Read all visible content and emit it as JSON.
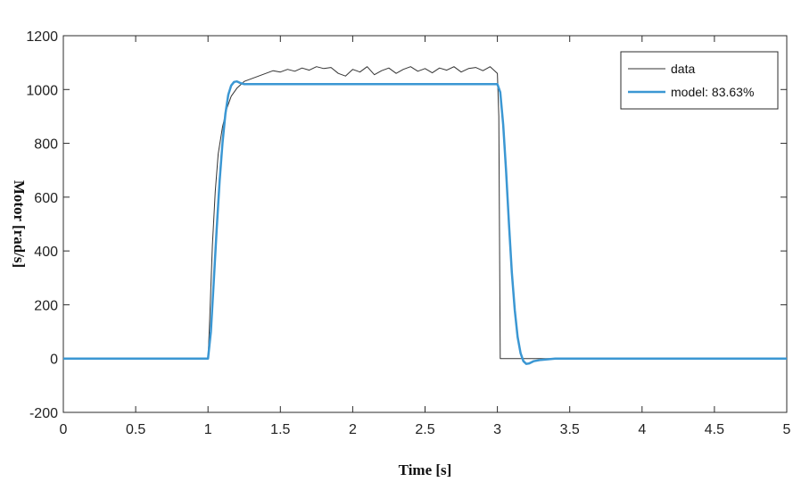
{
  "chart_data": {
    "type": "line",
    "title": "",
    "xlabel": "Time [s]",
    "ylabel": "Motor [rad/s]",
    "xlim": [
      0,
      5
    ],
    "ylim": [
      -200,
      1200
    ],
    "xticks": [
      0,
      0.5,
      1,
      1.5,
      2,
      2.5,
      3,
      3.5,
      4,
      4.5,
      5
    ],
    "xtick_labels": [
      "0",
      "0.5",
      "1",
      "1.5",
      "2",
      "2.5",
      "3",
      "3.5",
      "4",
      "4.5",
      "5"
    ],
    "yticks": [
      -200,
      0,
      200,
      400,
      600,
      800,
      1000,
      1200
    ],
    "ytick_labels": [
      "-200",
      "0",
      "200",
      "400",
      "600",
      "800",
      "1000",
      "1200"
    ],
    "grid": false,
    "legend_position": "top-right",
    "series": [
      {
        "name": "data",
        "color": "#333333",
        "x": [
          0,
          1.0,
          1.01,
          1.03,
          1.05,
          1.07,
          1.1,
          1.13,
          1.16,
          1.2,
          1.25,
          1.3,
          1.35,
          1.4,
          1.45,
          1.5,
          1.55,
          1.6,
          1.65,
          1.7,
          1.75,
          1.8,
          1.85,
          1.9,
          1.95,
          2.0,
          2.05,
          2.1,
          2.15,
          2.2,
          2.25,
          2.3,
          2.35,
          2.4,
          2.45,
          2.5,
          2.55,
          2.6,
          2.65,
          2.7,
          2.75,
          2.8,
          2.85,
          2.9,
          2.95,
          3.0,
          3.01,
          3.02,
          5.0
        ],
        "y": [
          0,
          0,
          120,
          420,
          620,
          760,
          860,
          930,
          975,
          1005,
          1030,
          1040,
          1050,
          1060,
          1070,
          1065,
          1075,
          1068,
          1080,
          1072,
          1085,
          1078,
          1082,
          1060,
          1050,
          1075,
          1065,
          1085,
          1055,
          1070,
          1080,
          1060,
          1075,
          1085,
          1068,
          1078,
          1062,
          1080,
          1072,
          1085,
          1065,
          1078,
          1082,
          1070,
          1085,
          1060,
          900,
          0,
          0
        ]
      },
      {
        "name": "model: 83.63%",
        "color": "#3b97d3",
        "x": [
          0,
          1.0,
          1.02,
          1.04,
          1.06,
          1.08,
          1.1,
          1.12,
          1.14,
          1.16,
          1.18,
          1.2,
          1.22,
          1.25,
          1.3,
          3.0,
          3.02,
          3.04,
          3.06,
          3.08,
          3.1,
          3.12,
          3.14,
          3.16,
          3.18,
          3.2,
          3.22,
          3.25,
          3.3,
          3.4,
          3.5,
          5.0
        ],
        "y": [
          0,
          0,
          100,
          290,
          480,
          660,
          800,
          910,
          980,
          1015,
          1028,
          1030,
          1025,
          1020,
          1020,
          1020,
          990,
          870,
          700,
          500,
          320,
          180,
          80,
          20,
          -10,
          -20,
          -18,
          -10,
          -5,
          0,
          0,
          0
        ]
      }
    ]
  }
}
